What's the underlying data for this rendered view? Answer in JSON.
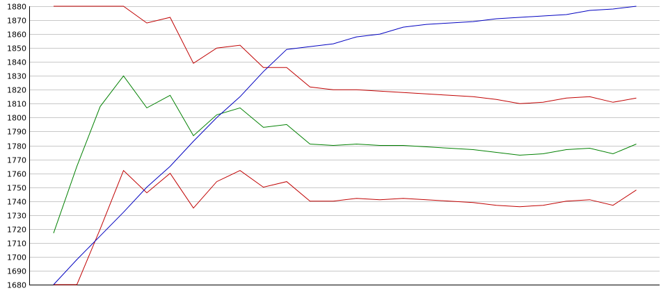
{
  "chart_data": {
    "type": "line",
    "title": "",
    "xlabel": "",
    "ylabel": "",
    "ylim": [
      1680,
      1880
    ],
    "yticks": [
      1680,
      1690,
      1700,
      1710,
      1720,
      1730,
      1740,
      1750,
      1760,
      1770,
      1780,
      1790,
      1800,
      1810,
      1820,
      1830,
      1840,
      1850,
      1860,
      1870,
      1880
    ],
    "x": [
      1,
      2,
      3,
      4,
      5,
      6,
      7,
      8,
      9,
      10,
      11,
      12,
      13,
      14,
      15,
      16,
      17,
      18,
      19,
      20,
      21,
      22,
      23,
      24,
      25,
      26
    ],
    "grid": true,
    "legend": "none",
    "series": [
      {
        "color": "#c00000",
        "values": [
          1880,
          1880,
          1880,
          1880,
          1868,
          1872,
          1839,
          1850,
          1852,
          1836,
          1836,
          1822,
          1820,
          1820,
          1819,
          1818,
          1817,
          1816,
          1815,
          1813,
          1810,
          1811,
          1814,
          1815,
          1811,
          1814
        ]
      },
      {
        "color": "#008000",
        "values": [
          1717,
          1765,
          1808,
          1830,
          1807,
          1816,
          1787,
          1802,
          1807,
          1793,
          1795,
          1781,
          1780,
          1781,
          1780,
          1780,
          1779,
          1778,
          1777,
          1775,
          1773,
          1774,
          1777,
          1778,
          1774,
          1781
        ]
      },
      {
        "color": "#c00000",
        "values": [
          1680,
          1680,
          1720,
          1762,
          1746,
          1760,
          1735,
          1754,
          1762,
          1750,
          1754,
          1740,
          1740,
          1742,
          1741,
          1742,
          1741,
          1740,
          1739,
          1737,
          1736,
          1737,
          1740,
          1741,
          1737,
          1748
        ]
      },
      {
        "color": "#0000c0",
        "values": [
          1680,
          1698,
          1715,
          1732,
          1750,
          1765,
          1783,
          1800,
          1815,
          1833,
          1849,
          1851,
          1853,
          1858,
          1860,
          1865,
          1867,
          1868,
          1869,
          1871,
          1872,
          1873,
          1874,
          1877,
          1878,
          1880
        ]
      }
    ]
  }
}
